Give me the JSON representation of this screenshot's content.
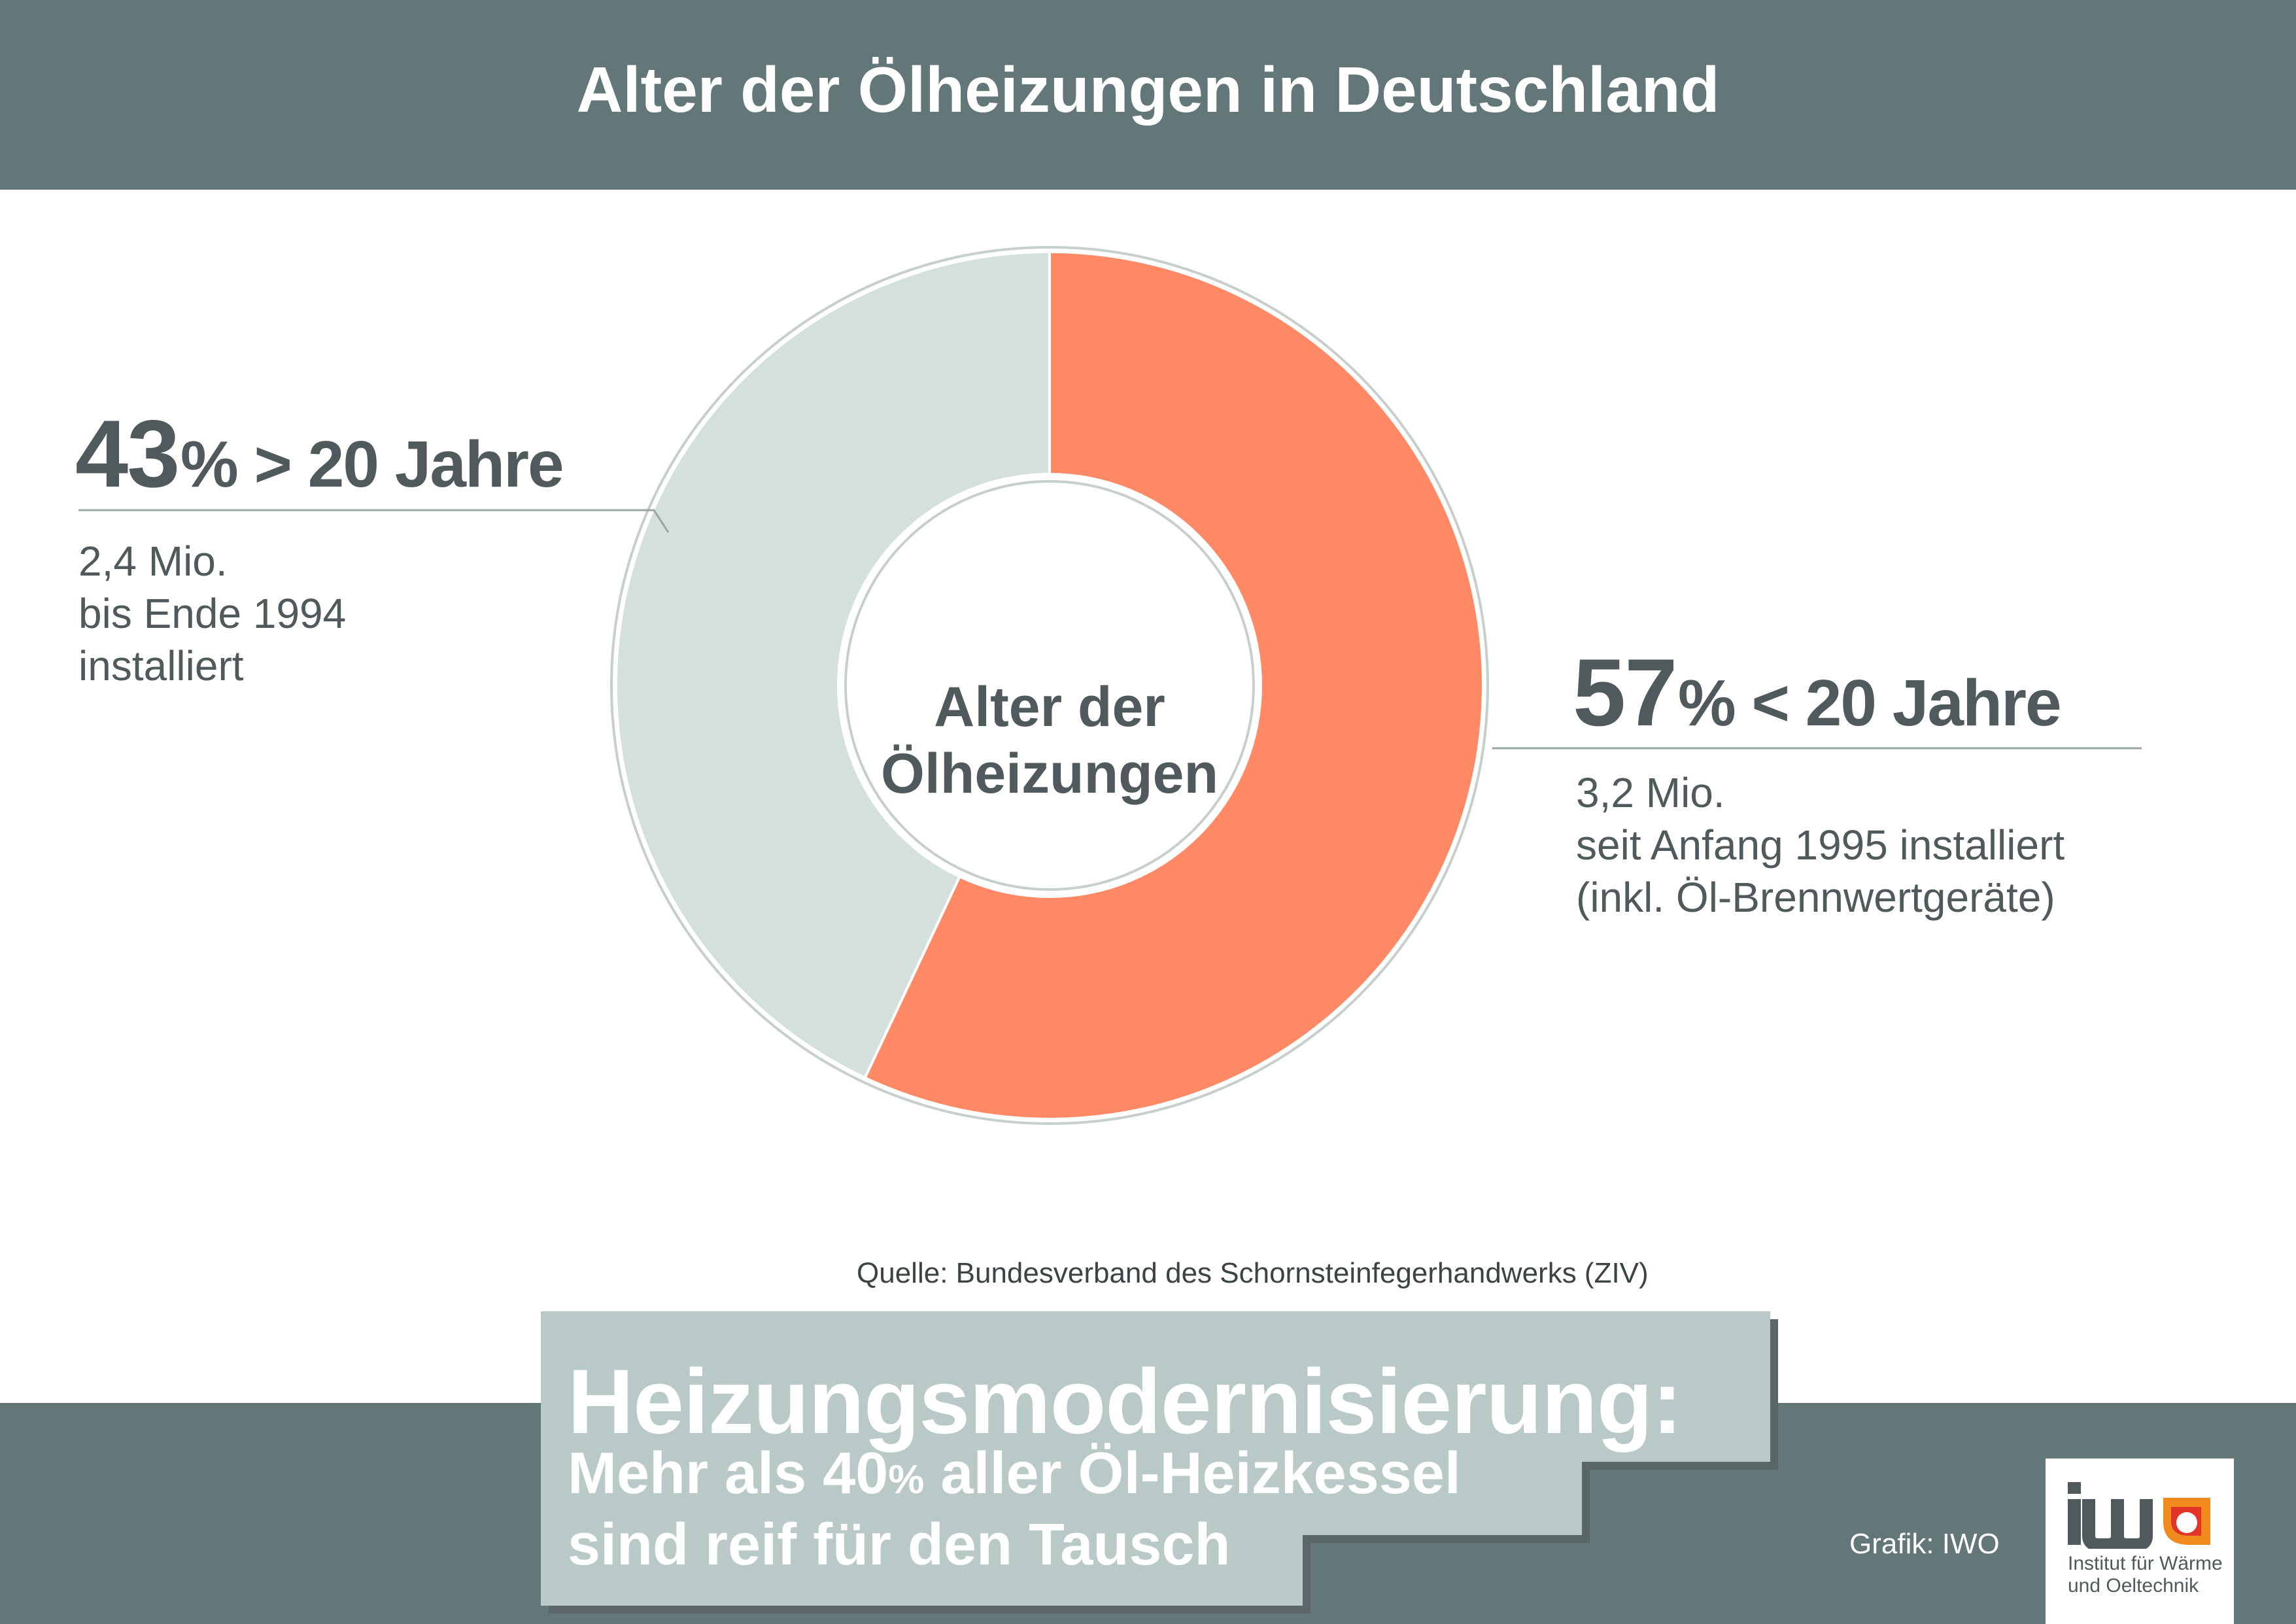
{
  "header": {
    "title": "Alter der Ölheizungen in Deutschland"
  },
  "chart_data": {
    "type": "pie",
    "variant": "donut",
    "title": "Alter der Ölheizungen",
    "center_label": [
      "Alter der",
      "Ölheizungen"
    ],
    "slices": [
      {
        "name": "< 20 Jahre",
        "value": 57,
        "count": "3,2 Mio.",
        "color": "#FF8865"
      },
      {
        "name": "> 20 Jahre",
        "value": 43,
        "count": "2,4 Mio.",
        "color": "#D4E0DE"
      }
    ],
    "labels": {
      "old": {
        "pct": "43",
        "text": "% > 20 Jahre",
        "lines": [
          "2,4 Mio.",
          "bis Ende 1994",
          "installiert"
        ]
      },
      "new": {
        "pct": "57",
        "text": "% < 20 Jahre",
        "lines": [
          "3,2 Mio.",
          "seit Anfang 1995 installiert",
          "(inkl. Öl-Brennwertgeräte)"
        ]
      }
    }
  },
  "source": "Quelle: Bundesverband des Schornsteinfegerhandwerks (ZIV)",
  "headline": {
    "title": "Heizungsmodernisierung:",
    "line1_pre": "Mehr als 40",
    "line1_pct": "%",
    "line1_post": " aller Öl-Heizkessel",
    "line2": "sind reif für den Tausch"
  },
  "credit": "Grafik: IWO",
  "logo": {
    "mark": "iwo",
    "line1": "Institut für Wärme",
    "line2": "und Oeltechnik"
  },
  "colors": {
    "bar": "#637678",
    "orange": "#FF8865",
    "light": "#D4E0DE",
    "text": "#505A5D",
    "box": "#B9C9C8"
  }
}
